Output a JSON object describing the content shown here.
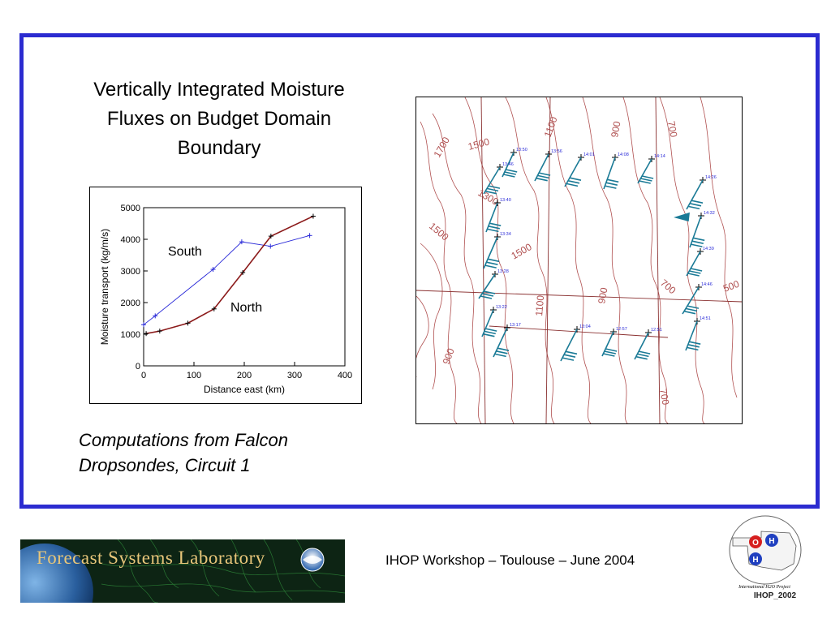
{
  "slide": {
    "title": "Vertically Integrated Moisture Fluxes on Budget Domain Boundary",
    "caption_line1": "Computations from Falcon",
    "caption_line2": "Dropsondes, Circuit 1",
    "footer": "IHOP Workshop – Toulouse – June 2004",
    "banner_text": "Forecast Systems Laboratory",
    "logo_caption": "International H2O Project",
    "logo_label": "IHOP_2002",
    "logo_letters": [
      "O",
      "H",
      "H"
    ],
    "colors": {
      "frame": "#2b2bd0",
      "south": "#2a2ad8",
      "north": "#8b1a1a",
      "contour": "#b05050",
      "barb": "#1a7a96"
    }
  },
  "chart_data": {
    "type": "line",
    "xlabel": "Distance east (km)",
    "ylabel": "Moisture transport (kg/m/s)",
    "xlim": [
      0,
      400
    ],
    "ylim": [
      0,
      5000
    ],
    "x_ticks": [
      "0",
      "100",
      "200",
      "300",
      "400"
    ],
    "y_ticks": [
      "0",
      "1000",
      "2000",
      "3000",
      "4000",
      "5000"
    ],
    "series": [
      {
        "name": "South",
        "x": [
          0,
          23,
          138,
          195,
          252,
          330
        ],
        "y": [
          1300,
          1580,
          3050,
          3920,
          3780,
          4120
        ]
      },
      {
        "name": "North",
        "x": [
          5,
          32,
          88,
          140,
          197,
          253,
          337
        ],
        "y": [
          1020,
          1100,
          1350,
          1800,
          2950,
          4100,
          4730
        ]
      }
    ]
  },
  "map": {
    "contour_labels": [
      "1700",
      "1500",
      "1300",
      "1500",
      "1100",
      "900",
      "700",
      "700",
      "500",
      "900",
      "1100",
      "900",
      "700",
      "1500"
    ],
    "time_labels": [
      "13:50",
      "13:56",
      "14:01",
      "14:08",
      "14:14",
      "13:46",
      "13:40",
      "13:34",
      "13:28",
      "13:22",
      "13:17",
      "13:04",
      "12:57",
      "12:51",
      "14:26",
      "14:32",
      "14:39",
      "14:46",
      "14:51"
    ]
  }
}
